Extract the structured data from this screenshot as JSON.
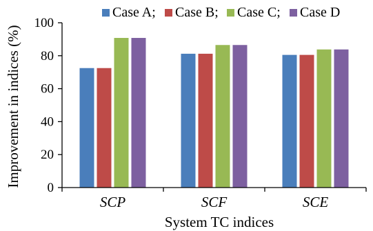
{
  "chart_data": {
    "type": "bar",
    "title": "",
    "xlabel": "System TC indices",
    "ylabel": "Improvement in indices (%)",
    "ylim": [
      0,
      100
    ],
    "yticks": [
      0,
      20,
      40,
      60,
      80,
      100
    ],
    "grid": false,
    "legend_position": "top-right",
    "categories": [
      "SCP",
      "SCF",
      "SCE"
    ],
    "series": [
      {
        "name": "Case A;",
        "color": "#4a7ebb",
        "values": [
          72.5,
          81.2,
          80.5
        ]
      },
      {
        "name": "Case B;",
        "color": "#be4b48",
        "values": [
          72.5,
          81.2,
          80.5
        ]
      },
      {
        "name": "Case C;",
        "color": "#98b954",
        "values": [
          90.8,
          86.5,
          83.8
        ]
      },
      {
        "name": "Case D",
        "color": "#7d60a0",
        "values": [
          90.8,
          86.5,
          83.8
        ]
      }
    ]
  }
}
